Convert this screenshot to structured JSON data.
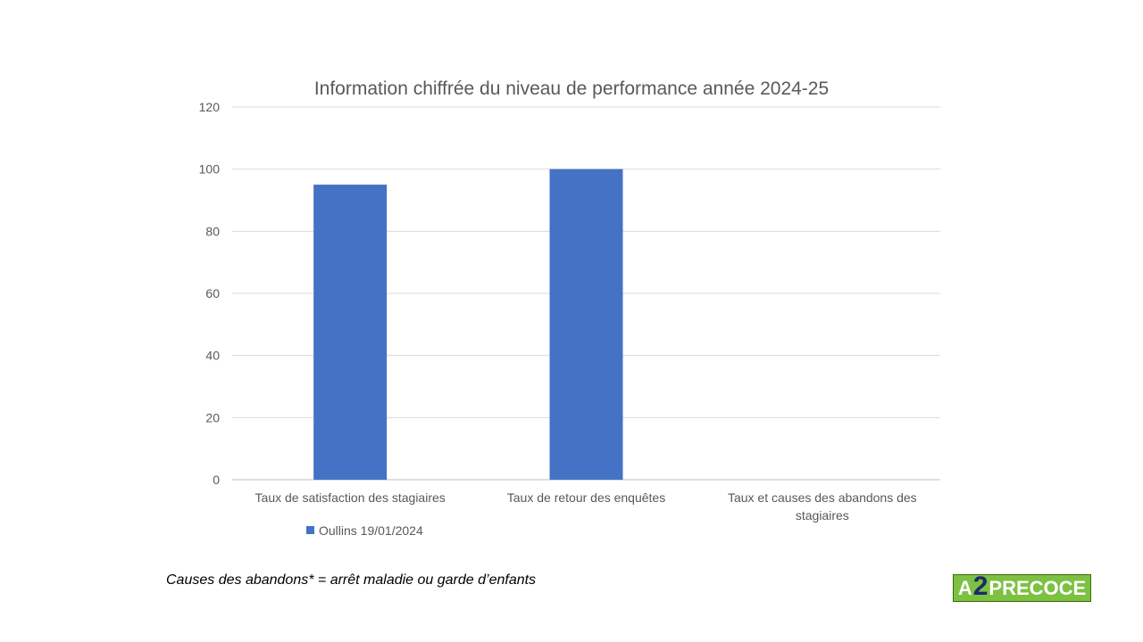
{
  "chart_data": {
    "type": "bar",
    "title": "Information chiffrée du niveau de performance année 2024-25",
    "categories": [
      "Taux de satisfaction des stagiaires",
      "Taux de retour des enquêtes",
      "Taux et causes des abandons des stagiaires"
    ],
    "category_lines": [
      [
        "Taux de satisfaction des stagiaires"
      ],
      [
        "Taux de retour des enquêtes"
      ],
      [
        "Taux et causes des abandons des",
        "stagiaires"
      ]
    ],
    "series": [
      {
        "name": "Oullins 19/01/2024",
        "values": [
          95,
          100,
          0
        ],
        "color": "#4472c4"
      }
    ],
    "ylim": [
      0,
      120
    ],
    "yticks": [
      0,
      20,
      40,
      60,
      80,
      100,
      120
    ],
    "grid": true,
    "legend": "bottom-left",
    "xlabel": "",
    "ylabel": ""
  },
  "footnote": "Causes des abandons* = arrêt maladie ou garde d’enfants",
  "logo": {
    "a": "A",
    "two": "2",
    "rest": "PRECOCE",
    "bg_color": "#7dc142",
    "accent_color": "#1c2a6b"
  }
}
